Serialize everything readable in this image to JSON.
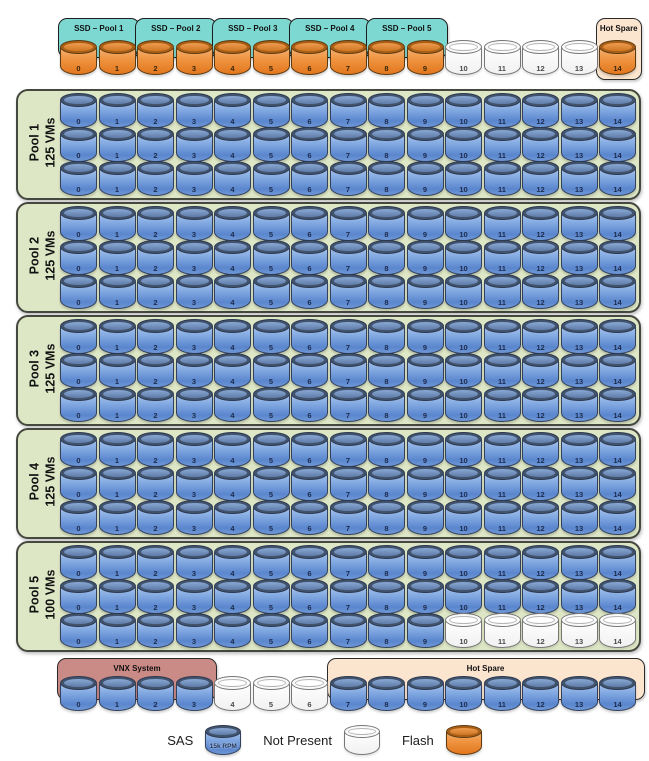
{
  "type_map": {
    "s": "sas",
    "e": "empty",
    "f": "flash"
  },
  "drive_numbers": [
    "0",
    "1",
    "2",
    "3",
    "4",
    "5",
    "6",
    "7",
    "8",
    "9",
    "10",
    "11",
    "12",
    "13",
    "14"
  ],
  "ssd_section": {
    "pool_boxes": [
      {
        "label": "SSD – Pool 1",
        "start": 0,
        "span": 2
      },
      {
        "label": "SSD – Pool 2",
        "start": 2,
        "span": 2
      },
      {
        "label": "SSD – Pool 3",
        "start": 4,
        "span": 2
      },
      {
        "label": "SSD – Pool 4",
        "start": 6,
        "span": 2
      },
      {
        "label": "SSD – Pool 5",
        "start": 8,
        "span": 2
      }
    ],
    "hot_spare_box": {
      "label": "Hot Spare",
      "start": 14,
      "span": 1
    },
    "row": "ffffffffffeeeef"
  },
  "pools": [
    {
      "name": "Pool 1",
      "vms": "125 VMs",
      "rows": [
        "sssssssssssssss",
        "sssssssssssssss",
        "sssssssssssssss"
      ]
    },
    {
      "name": "Pool 2",
      "vms": "125 VMs",
      "rows": [
        "sssssssssssssss",
        "sssssssssssssss",
        "sssssssssssssss"
      ]
    },
    {
      "name": "Pool 3",
      "vms": "125 VMs",
      "rows": [
        "sssssssssssssss",
        "sssssssssssssss",
        "sssssssssssssss"
      ]
    },
    {
      "name": "Pool 4",
      "vms": "125 VMs",
      "rows": [
        "sssssssssssssss",
        "sssssssssssssss",
        "sssssssssssssss"
      ]
    },
    {
      "name": "Pool 5",
      "vms": "100 VMs",
      "rows": [
        "sssssssssssssss",
        "sssssssssssssss",
        "sssssssssseeeee"
      ]
    }
  ],
  "bottom_section": {
    "vnx_box": {
      "label": "VNX System",
      "start": 0,
      "span": 4
    },
    "hot_spare_box": {
      "label": "Hot Spare",
      "start": 7,
      "span": 8
    },
    "row": "sssseeessssssss"
  },
  "legend": {
    "items": [
      {
        "label": "SAS",
        "disk_type": "sas",
        "disk_text": "15k RPM"
      },
      {
        "label": "Not Present",
        "disk_type": "empty",
        "disk_text": ""
      },
      {
        "label": "Flash",
        "disk_type": "flash",
        "disk_text": ""
      }
    ]
  },
  "colors": {
    "teal_pool_box": "#7ed8d2",
    "hot_spare_box": "#fbe5cf",
    "vnx_system_box": "#ca8a86",
    "pool_background": "#dde6c5",
    "sas_drive": "#6e97d6",
    "flash_drive": "#ec8a33",
    "not_present_drive": "#ffffff"
  }
}
